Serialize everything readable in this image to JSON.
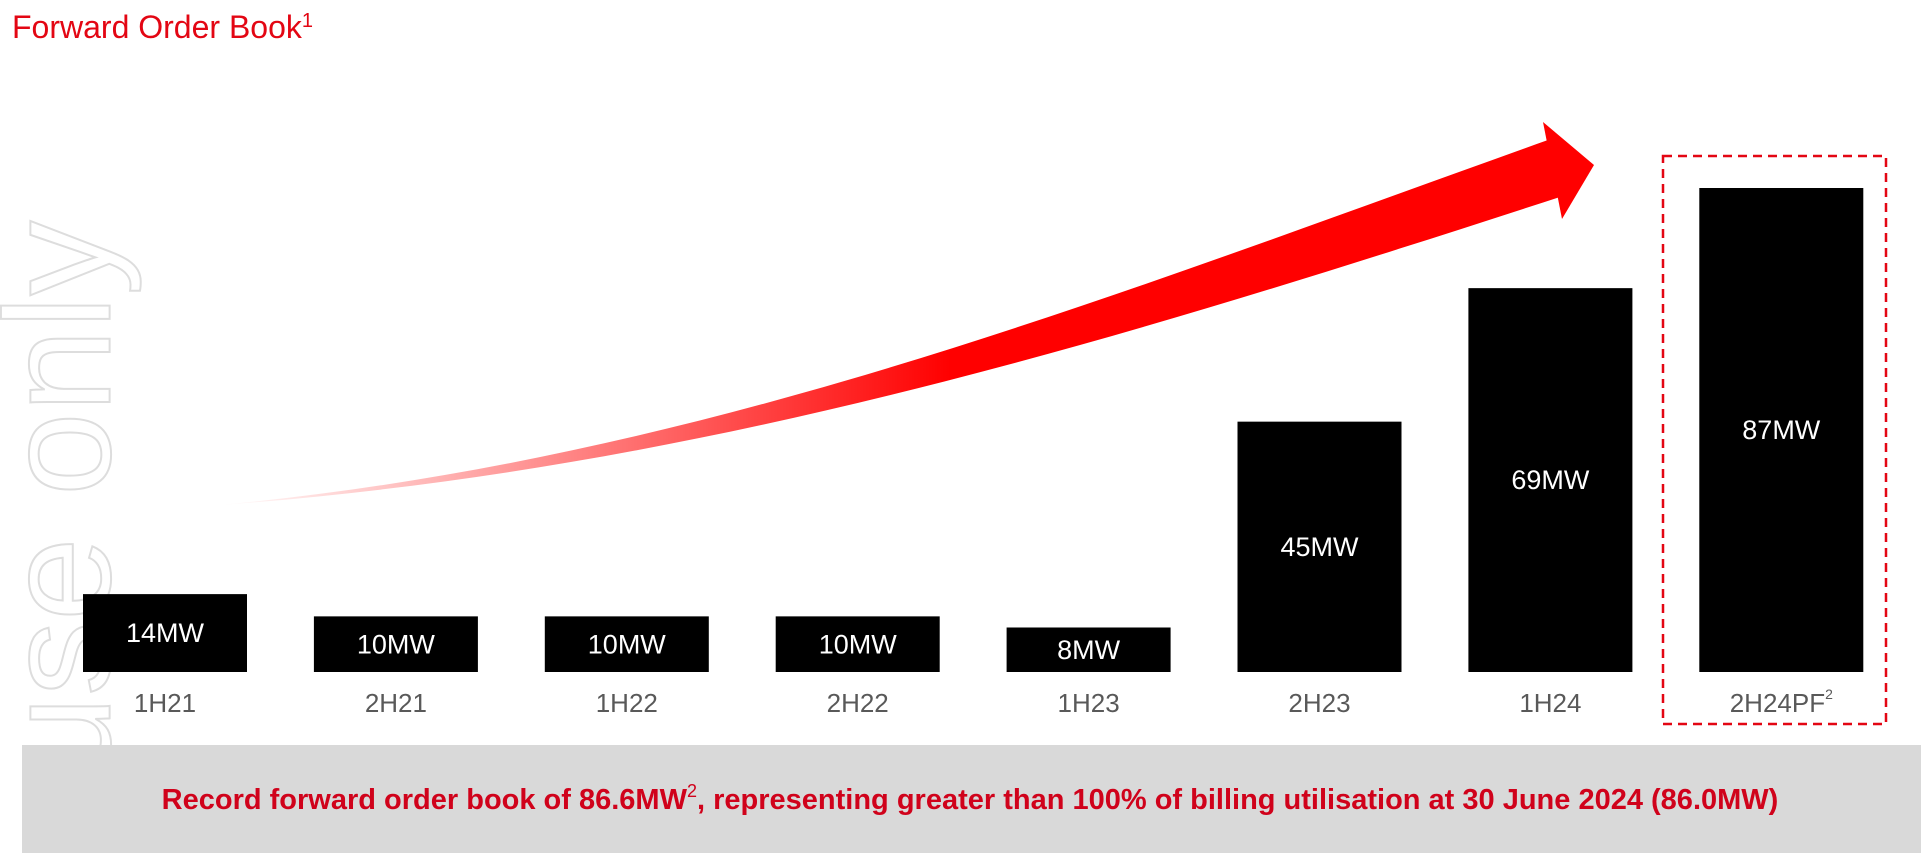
{
  "chart_data": {
    "type": "bar",
    "title": "Forward Order Book",
    "title_note": "1",
    "categories": [
      "1H21",
      "2H21",
      "1H22",
      "2H22",
      "1H23",
      "2H23",
      "1H24",
      "2H24PF"
    ],
    "category_notes": [
      null,
      null,
      null,
      null,
      null,
      null,
      null,
      "2"
    ],
    "values": [
      14,
      10,
      10,
      10,
      8,
      45,
      69,
      87
    ],
    "value_labels": [
      "14MW",
      "10MW",
      "10MW",
      "10MW",
      "8MW",
      "45MW",
      "69MW",
      "87MW"
    ],
    "color": "#000000",
    "footer": {
      "before": "Record forward order book of 86.6MW",
      "note": "2",
      "after": ", representing greater than 100% of billing utilisation at 30 June 2024 (86.0MW)"
    },
    "watermark": "use only"
  }
}
